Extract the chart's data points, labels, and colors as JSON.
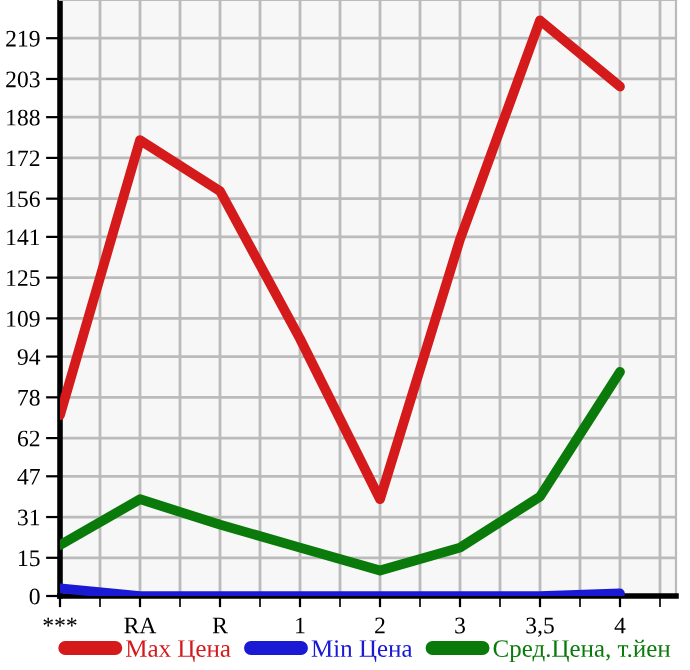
{
  "chart_data": {
    "type": "line",
    "categories": [
      "***",
      "RA",
      "R",
      "1",
      "2",
      "3",
      "3,5",
      "4"
    ],
    "series": [
      {
        "name": "Max Цена",
        "color": "#d41a1a",
        "values": [
          71,
          179,
          159,
          101,
          38,
          140,
          226,
          200
        ]
      },
      {
        "name": "Min Цена",
        "color": "#1a1ad4",
        "values": [
          3,
          0,
          0,
          0,
          0,
          0,
          0,
          1
        ]
      },
      {
        "name": "Сред.Цена, т.йен",
        "color": "#0a7a0a",
        "values": [
          20,
          38,
          28,
          19,
          10,
          19,
          39,
          88
        ]
      }
    ],
    "ylim": [
      0,
      234
    ],
    "yticks": [
      0,
      15,
      31,
      47,
      62,
      78,
      94,
      109,
      125,
      141,
      156,
      172,
      188,
      203,
      219
    ],
    "grid": true,
    "legend": "bottom",
    "marker": "none",
    "line_style": "solid"
  }
}
